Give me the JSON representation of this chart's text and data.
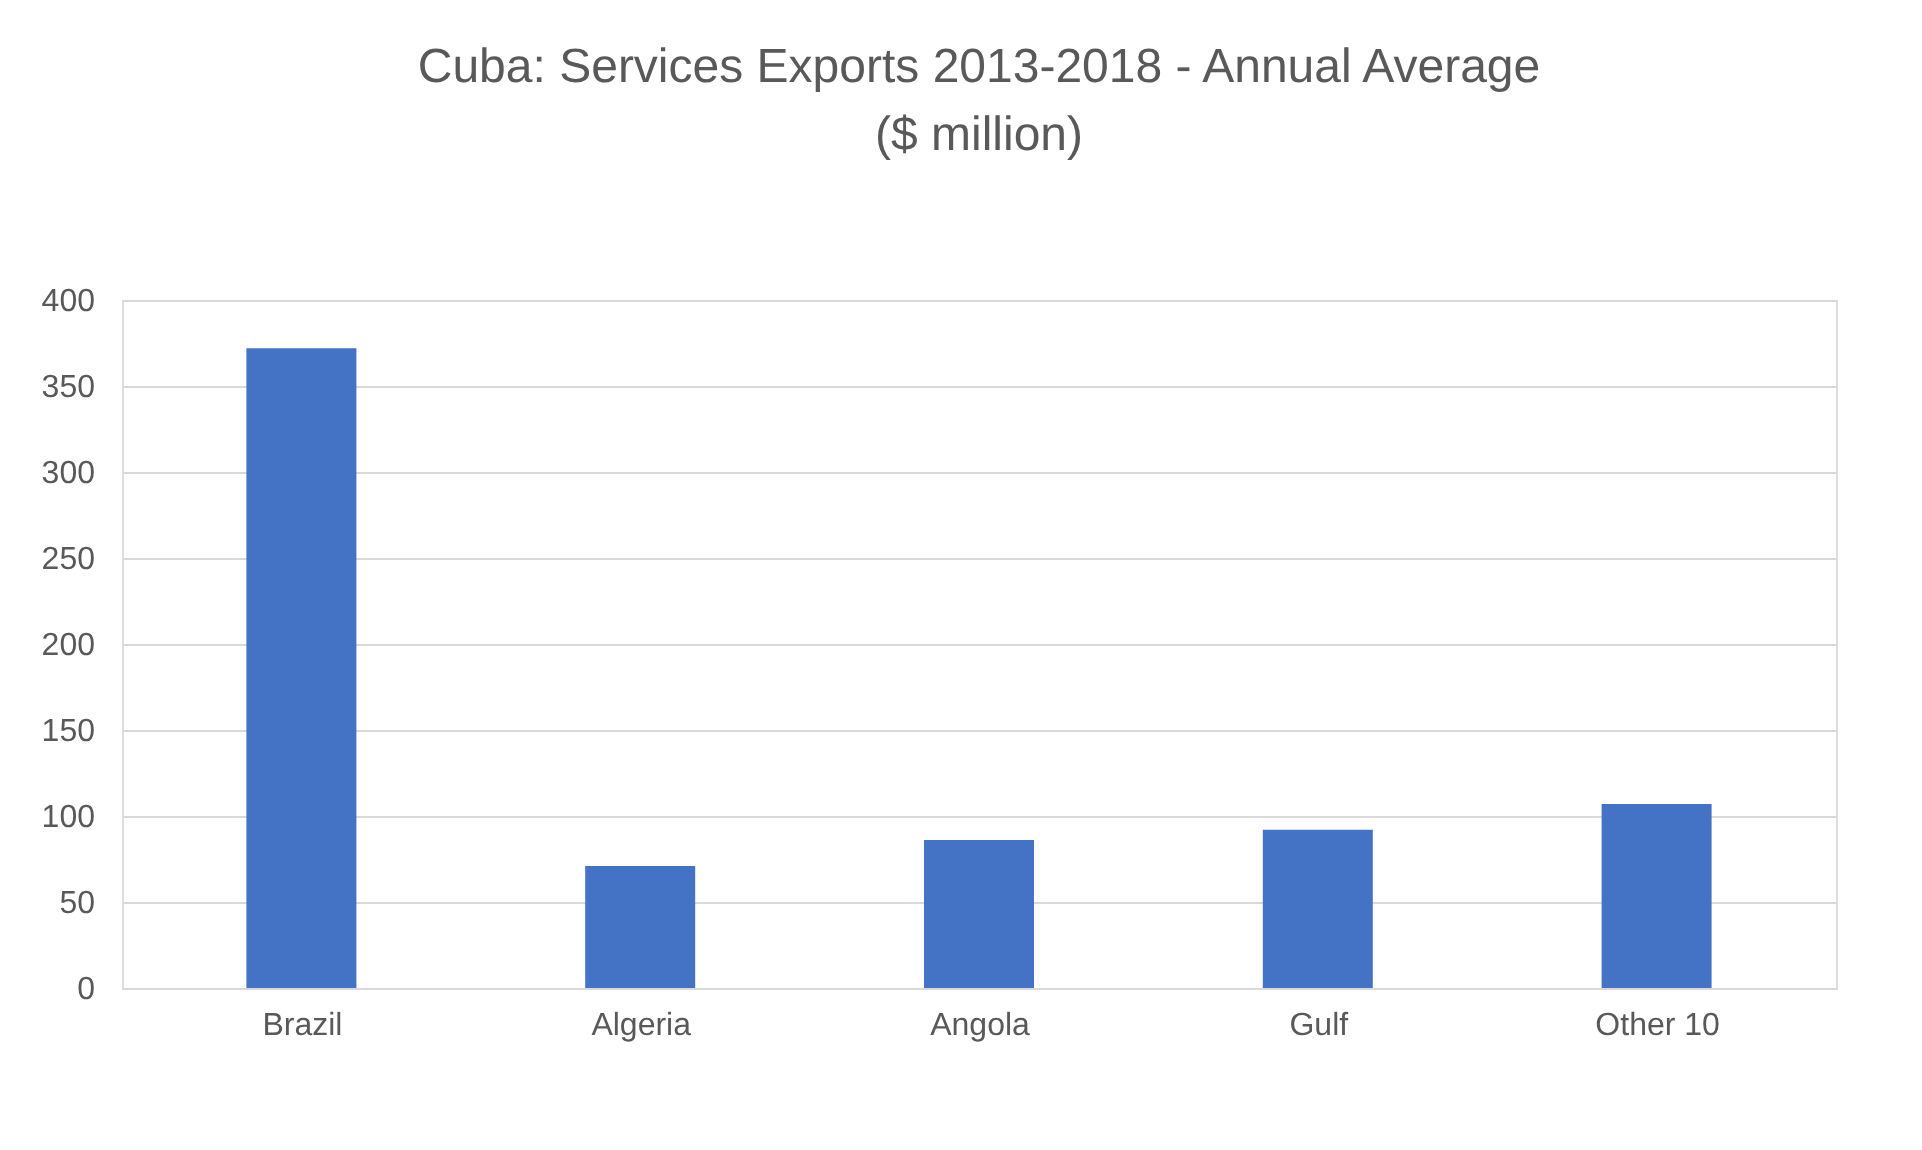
{
  "chart_data": {
    "type": "bar",
    "title": "Cuba: Services Exports 2013-2018 - Annual Average\n($ million)",
    "categories": [
      "Brazil",
      "Algeria",
      "Angola",
      "Gulf",
      "Other 10"
    ],
    "values": [
      372,
      71,
      86,
      92,
      107
    ],
    "color": "#4472c4",
    "ylim": [
      0,
      400
    ],
    "yticks": [
      0,
      50,
      100,
      150,
      200,
      250,
      300,
      350,
      400
    ],
    "grid": "y"
  }
}
